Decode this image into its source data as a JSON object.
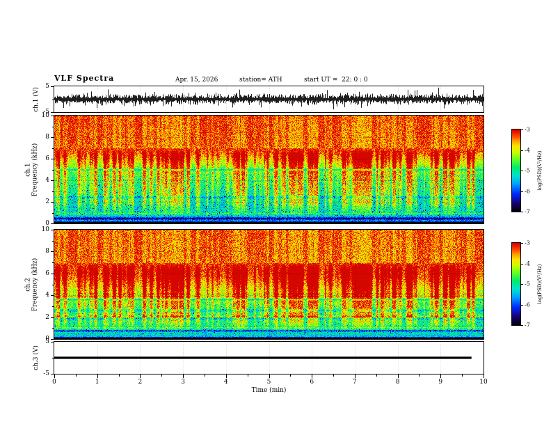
{
  "header": {
    "title": "VLF Spectra",
    "date": "Apr. 15, 2026",
    "station": "station= ATH",
    "start_ut": "start UT =  22: 0 : 0"
  },
  "xaxis": {
    "label": "Time (min)",
    "lim": [
      0,
      10
    ],
    "ticks": [
      0,
      1,
      2,
      3,
      4,
      5,
      6,
      7,
      8,
      9,
      10
    ]
  },
  "chart_data": [
    {
      "type": "line",
      "name": "ch1-voltage-trace",
      "ylabel": "ch.1 (V)",
      "ylim": [
        -5,
        5
      ],
      "yticks": [
        5,
        -5
      ],
      "signal": {
        "kind": "broadband-noise",
        "typical_v": 1.5,
        "peak_v": 4.5,
        "seed": 11
      }
    },
    {
      "type": "heatmap",
      "name": "ch1-spectrogram",
      "ylabel_lines": [
        "ch.1",
        "Frequency (kHz)"
      ],
      "ylim": [
        0,
        10
      ],
      "yticks": [
        0,
        2,
        4,
        6,
        8,
        10
      ],
      "colorbar": {
        "label": "log(PSD)(V²/Hz)",
        "lim": [
          -7,
          -3
        ],
        "ticks": [
          -3,
          -4,
          -5,
          -6,
          -7
        ]
      },
      "profile": [
        [
          0,
          -6.4
        ],
        [
          0.15,
          -5.8
        ],
        [
          0.45,
          -5.5
        ],
        [
          0.8,
          -5.15
        ],
        [
          1.6,
          -5.3
        ],
        [
          2.6,
          -5.05
        ],
        [
          3.6,
          -4.85
        ],
        [
          4.6,
          -4.65
        ],
        [
          5.4,
          -4.35
        ],
        [
          6.0,
          -3.95
        ],
        [
          6.6,
          -3.4
        ],
        [
          7.2,
          -3.2
        ],
        [
          10,
          -3.1
        ]
      ],
      "bands": [
        [
          5.0,
          0.12,
          -1.1
        ],
        [
          2.45,
          0.18,
          -0.6
        ],
        [
          0.95,
          0.1,
          0.55
        ],
        [
          0.5,
          0.2,
          -1.2
        ],
        [
          0.1,
          0.14,
          -1.8
        ]
      ],
      "speckle": {
        "fmin": 0.7,
        "fmax": 4.6,
        "prob": 0.16,
        "depth": 1.5
      },
      "streaks": {
        "count": 160,
        "seed": 7
      },
      "noise": 0.48,
      "noise_seed": 101
    },
    {
      "type": "heatmap",
      "name": "ch2-spectrogram",
      "ylabel_lines": [
        "ch.2",
        "Frequency (kHz)"
      ],
      "ylim": [
        0,
        10
      ],
      "yticks": [
        0,
        2,
        4,
        6,
        8,
        10
      ],
      "colorbar": {
        "label": "log(PSD)(V²/Hz)",
        "lim": [
          -7,
          -3
        ],
        "ticks": [
          -3,
          -4,
          -5,
          -6,
          -7
        ]
      },
      "profile": [
        [
          0,
          -6.2
        ],
        [
          0.2,
          -5.5
        ],
        [
          0.6,
          -5.15
        ],
        [
          1.2,
          -5.0
        ],
        [
          2.2,
          -4.9
        ],
        [
          3.2,
          -4.6
        ],
        [
          4.0,
          -4.35
        ],
        [
          4.6,
          -4.05
        ],
        [
          5.2,
          -3.7
        ],
        [
          5.8,
          -3.4
        ],
        [
          6.5,
          -3.25
        ],
        [
          10,
          -3.15
        ]
      ],
      "bands": [
        [
          4.15,
          0.1,
          0.6
        ],
        [
          3.9,
          0.09,
          0.8
        ],
        [
          3.62,
          0.1,
          -1.0
        ],
        [
          2.65,
          0.18,
          -0.7
        ],
        [
          2.12,
          0.09,
          0.8
        ],
        [
          1.88,
          0.1,
          -0.9
        ],
        [
          1.05,
          0.09,
          0.7
        ],
        [
          0.78,
          0.12,
          -1.3
        ],
        [
          0.1,
          0.14,
          -1.8
        ]
      ],
      "speckle": {
        "fmin": 0.5,
        "fmax": 3.4,
        "prob": 0.12,
        "depth": 1.2
      },
      "streaks": {
        "count": 160,
        "seed": 7
      },
      "noise": 0.5,
      "noise_seed": 202
    },
    {
      "type": "line",
      "name": "ch3-voltage-trace",
      "ylabel": "ch.3 (V)",
      "ylim": [
        -5,
        5
      ],
      "yticks": [
        5,
        -5
      ],
      "signal": {
        "kind": "constant",
        "value_v": 0,
        "end_min": 9.72,
        "thickness_v": 0.7,
        "seed": 13
      }
    }
  ]
}
